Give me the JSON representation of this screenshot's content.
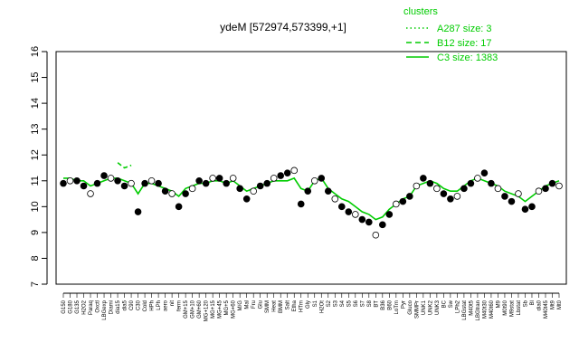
{
  "chart_data": {
    "type": "line",
    "title": "ydeM [572974,573399,+1]",
    "xlabel": "",
    "ylabel": "",
    "ylim": [
      7,
      16
    ],
    "yticks": [
      7,
      8,
      9,
      10,
      11,
      12,
      13,
      14,
      15,
      16
    ],
    "grid": false,
    "legend": {
      "placement": "top-right",
      "title": "clusters",
      "entries": [
        {
          "label": "A287 size: 3",
          "style": "dotted"
        },
        {
          "label": "B12 size: 17",
          "style": "dashed"
        },
        {
          "label": "C3 size: 1383",
          "style": "solid"
        }
      ]
    },
    "colors": {
      "series": "#00cc00",
      "points": "#000000",
      "frame": "#000000"
    },
    "x_categories": [
      "G150",
      "G180",
      "G135",
      "H2O2",
      "Paraq",
      "Oxctl",
      "LBGexp",
      "Diami",
      "dia15",
      "dia5",
      "C90",
      "C30",
      "Cold",
      "HPh",
      "LPh",
      "aero",
      "nit",
      "ferm",
      "GM+15",
      "GM+10",
      "GM+60",
      "MG+120",
      "MG+15",
      "MG+45",
      "MG+5",
      "MG+60",
      "M/G",
      "Mal",
      "Fru",
      "Glu",
      "SMM",
      "Heat",
      "BMM",
      "Salt",
      "Etha",
      "HTm",
      "Gly",
      "S1",
      "H2Ot",
      "S2",
      "S3",
      "S4",
      "S5",
      "S6",
      "S7",
      "S8",
      "BT",
      "B36",
      "B60",
      "LoTm",
      "Pyr",
      "Gluco",
      "SMMPr",
      "UNK1",
      "UNK2",
      "UNK3",
      "BC",
      "Sw",
      "LPh2",
      "LBGstat",
      "M40t5",
      "LBGtran",
      "M40t30",
      "M40t60",
      "M9",
      "M0t90",
      "M9stat",
      "Lbstat",
      "Sb",
      "Bl",
      "dia0",
      "M40t45",
      "Mt9",
      "Mt0"
    ],
    "series": [
      {
        "name": "",
        "style": "solid",
        "y": [
          11.1,
          11.1,
          11.0,
          11.0,
          10.8,
          10.9,
          11.0,
          11.1,
          11.1,
          11.0,
          10.9,
          10.5,
          10.9,
          10.9,
          10.8,
          10.7,
          10.6,
          10.4,
          10.7,
          10.8,
          10.9,
          10.9,
          11.0,
          11.0,
          10.9,
          11.0,
          10.8,
          10.6,
          10.7,
          10.8,
          10.9,
          11.0,
          11.0,
          11.0,
          11.1,
          10.7,
          10.6,
          11.0,
          11.1,
          10.7,
          10.5,
          10.3,
          10.2,
          10.0,
          9.8,
          9.7,
          9.5,
          9.6,
          9.9,
          10.1,
          10.3,
          10.4,
          10.8,
          10.9,
          11.0,
          10.9,
          10.7,
          10.6,
          10.6,
          10.8,
          11.0,
          11.1,
          11.0,
          10.9,
          10.8,
          10.6,
          10.5,
          10.4,
          10.2,
          10.4,
          10.6,
          10.8,
          10.9,
          11.0
        ]
      },
      {
        "name": "",
        "style": "dashed",
        "points": [
          {
            "x": 8,
            "y": 11.7
          },
          {
            "x": 9,
            "y": 11.5
          },
          {
            "x": 10,
            "y": 11.6
          }
        ]
      }
    ],
    "scatter_y": [
      10.9,
      11.0,
      11.0,
      10.8,
      10.5,
      10.9,
      11.2,
      11.1,
      11.0,
      10.8,
      10.9,
      9.8,
      10.9,
      11.0,
      10.9,
      10.6,
      10.5,
      10.0,
      10.5,
      10.7,
      11.0,
      10.9,
      11.1,
      11.1,
      10.9,
      11.1,
      10.7,
      10.3,
      10.6,
      10.8,
      10.9,
      11.1,
      11.2,
      11.3,
      11.4,
      10.1,
      10.6,
      11.0,
      11.1,
      10.6,
      10.3,
      10.0,
      9.8,
      9.7,
      9.5,
      9.4,
      8.9,
      9.3,
      9.7,
      10.1,
      10.2,
      10.4,
      10.8,
      11.1,
      10.9,
      10.7,
      10.5,
      10.3,
      10.4,
      10.7,
      10.9,
      11.1,
      11.3,
      10.9,
      10.7,
      10.4,
      10.2,
      10.5,
      9.9,
      10.0,
      10.6,
      10.7,
      10.9,
      10.8
    ]
  }
}
